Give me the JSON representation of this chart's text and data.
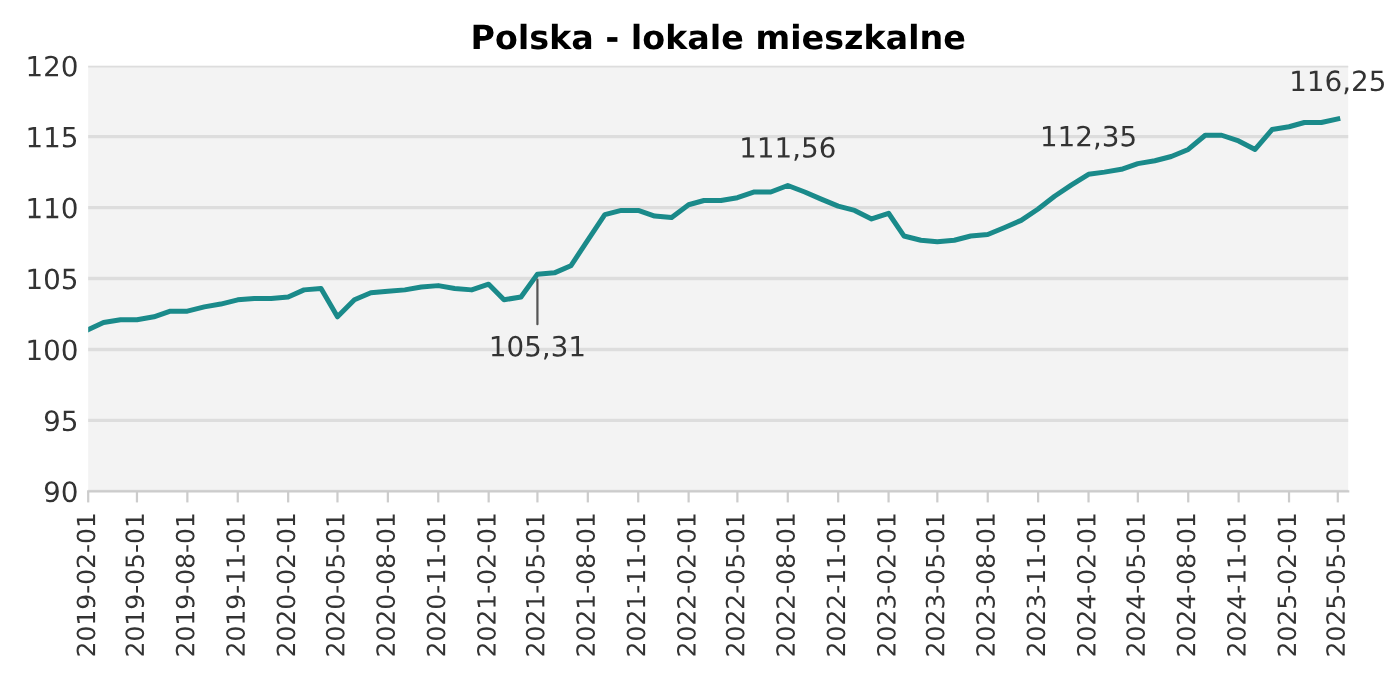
{
  "chart_data": {
    "type": "line",
    "title": "Polska - lokale mieszkalne",
    "x": [
      "2019-02",
      "2019-03",
      "2019-04",
      "2019-05",
      "2019-06",
      "2019-07",
      "2019-08",
      "2019-09",
      "2019-10",
      "2019-11",
      "2019-12",
      "2020-01",
      "2020-02",
      "2020-03",
      "2020-04",
      "2020-05",
      "2020-06",
      "2020-07",
      "2020-08",
      "2020-09",
      "2020-10",
      "2020-11",
      "2020-12",
      "2021-01",
      "2021-02",
      "2021-03",
      "2021-04",
      "2021-05",
      "2021-06",
      "2021-07",
      "2021-08",
      "2021-09",
      "2021-10",
      "2021-11",
      "2021-12",
      "2022-01",
      "2022-02",
      "2022-03",
      "2022-04",
      "2022-05",
      "2022-06",
      "2022-07",
      "2022-08",
      "2022-09",
      "2022-10",
      "2022-11",
      "2022-12",
      "2023-01",
      "2023-02",
      "2023-03",
      "2023-04",
      "2023-05",
      "2023-06",
      "2023-07",
      "2023-08",
      "2023-09",
      "2023-10",
      "2023-11",
      "2023-12",
      "2024-01",
      "2024-02",
      "2024-03",
      "2024-04",
      "2024-05",
      "2024-06",
      "2024-07",
      "2024-08",
      "2024-09",
      "2024-10",
      "2024-11",
      "2024-12",
      "2025-01",
      "2025-02",
      "2025-03",
      "2025-04",
      "2025-05"
    ],
    "series": [
      {
        "color": "#1a8a8a",
        "values": [
          101.4,
          101.9,
          102.1,
          102.1,
          102.3,
          102.7,
          102.7,
          103.0,
          103.2,
          103.5,
          103.6,
          103.6,
          103.7,
          104.2,
          104.3,
          102.3,
          103.5,
          104.0,
          104.1,
          104.2,
          104.4,
          104.5,
          104.3,
          104.2,
          104.6,
          103.5,
          103.7,
          105.31,
          105.4,
          105.9,
          107.7,
          109.5,
          109.8,
          109.8,
          109.4,
          109.3,
          110.2,
          110.5,
          110.5,
          110.7,
          111.1,
          111.1,
          111.56,
          111.1,
          110.6,
          110.1,
          109.8,
          109.2,
          109.6,
          108.0,
          107.7,
          107.6,
          107.7,
          108.0,
          108.1,
          108.6,
          109.1,
          109.9,
          110.8,
          111.6,
          112.35,
          112.5,
          112.7,
          113.1,
          113.3,
          113.6,
          114.1,
          115.1,
          115.1,
          114.7,
          114.1,
          115.5,
          115.7,
          116.0,
          116.0,
          116.25
        ]
      }
    ],
    "ylim": [
      90,
      120
    ],
    "yticks": [
      90,
      95,
      100,
      105,
      110,
      115,
      120
    ],
    "xlim": [
      "2019-02-01",
      "2025-05-20"
    ],
    "xticks": [
      "2019-02-01",
      "2019-05-01",
      "2019-08-01",
      "2019-11-01",
      "2020-02-01",
      "2020-05-01",
      "2020-08-01",
      "2020-11-01",
      "2021-02-01",
      "2021-05-01",
      "2021-08-01",
      "2021-11-01",
      "2022-02-01",
      "2022-05-01",
      "2022-08-01",
      "2022-11-01",
      "2023-02-01",
      "2023-05-01",
      "2023-08-01",
      "2023-11-01",
      "2024-02-01",
      "2024-05-01",
      "2024-08-01",
      "2024-11-01",
      "2025-02-01",
      "2025-05-01"
    ],
    "grid": "y",
    "legend": false,
    "annotations": [
      {
        "text": "105,31",
        "x": "2021-05",
        "y": 105.31
      },
      {
        "text": "111,56",
        "x": "2022-08",
        "y": 111.56
      },
      {
        "text": "112,35",
        "x": "2024-02",
        "y": 112.35
      },
      {
        "text": "116,25",
        "x": "2025-05",
        "y": 116.25
      }
    ]
  }
}
